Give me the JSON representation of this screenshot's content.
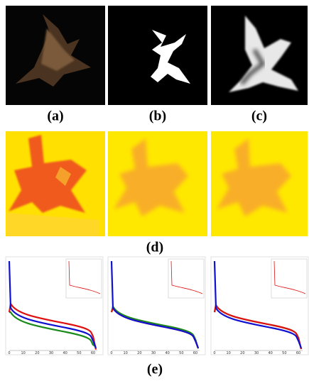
{
  "figure": {
    "panel_labels": [
      "(a)",
      "(b)",
      "(c)",
      "(d)",
      "(e)"
    ],
    "plots": [
      {
        "xticks": [
          "0",
          "10",
          "20",
          "30",
          "40",
          "50",
          "60"
        ]
      },
      {
        "xticks": [
          "0",
          "10",
          "20",
          "30",
          "40",
          "50",
          "60"
        ]
      },
      {
        "xticks": [
          "0",
          "10",
          "20",
          "30",
          "40",
          "50",
          "60"
        ]
      }
    ]
  }
}
